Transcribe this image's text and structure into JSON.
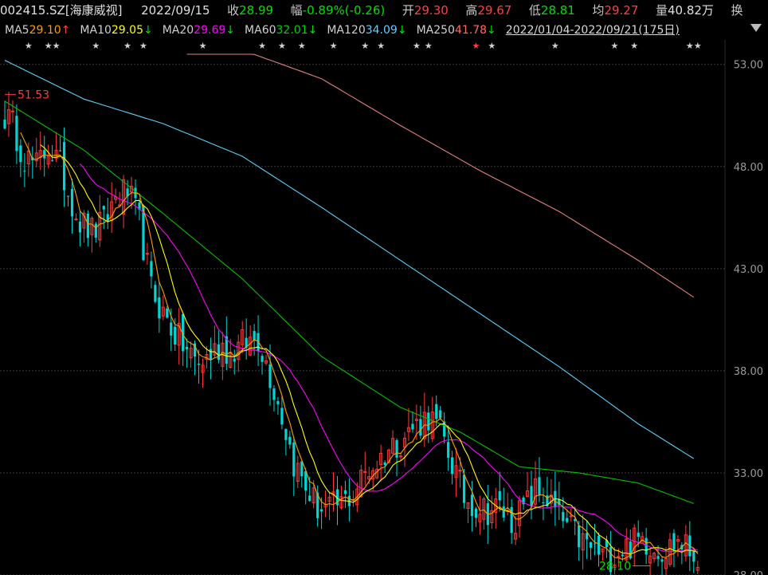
{
  "header": {
    "symbol": "002415.SZ[海康威视]",
    "date": "2022/09/15",
    "close_label": "收",
    "close": "28.99",
    "change_label": "幅",
    "change": "-0.89%(-0.26)",
    "open_label": "开",
    "open": "29.30",
    "high_label": "高",
    "high": "29.67",
    "low_label": "低",
    "low": "28.81",
    "avg_label": "均",
    "avg": "29.27",
    "vol_label": "量",
    "vol": "40.82万",
    "turnover_label": "换"
  },
  "ma_legend": [
    {
      "name": "MA5",
      "value": "29.10",
      "arrow": "↑",
      "color": "#ff9d00"
    },
    {
      "name": "MA10",
      "value": "29.05",
      "arrow": "↓",
      "color": "#ffff00"
    },
    {
      "name": "MA20",
      "value": "29.69",
      "arrow": "↓",
      "color": "#ff00ff"
    },
    {
      "name": "MA60",
      "value": "32.01",
      "arrow": "↓",
      "color": "#00d000"
    },
    {
      "name": "MA120",
      "value": "34.09",
      "arrow": "↓",
      "color": "#66ccff"
    },
    {
      "name": "MA250",
      "value": "41.78",
      "arrow": "↓",
      "color": "#ff6a6a"
    }
  ],
  "range_label": "2022/01/04-2022/09/21(175日)",
  "colors": {
    "up": "#ff3b3b",
    "down": "#00d6d6",
    "ma5": "#ff9d00",
    "ma10": "#ffff00",
    "ma20": "#ff00ff",
    "ma60": "#00c000",
    "ma120": "#5ccff7",
    "ma250": "#e08080",
    "grid": "#3a3a3a",
    "high_marker": "#ff3b3b",
    "low_marker": "#00e000"
  },
  "chart_data": {
    "type": "candlestick",
    "ylim": [
      28.0,
      54.2
    ],
    "yticks": [
      "53.00",
      "48.00",
      "43.00",
      "38.00",
      "33.00",
      "28.00"
    ],
    "high_annotation": "51.53",
    "low_annotation": "28.10",
    "anchors": [
      [
        0,
        50.5
      ],
      [
        2,
        50.0
      ],
      [
        5,
        48.5
      ],
      [
        8,
        48.0
      ],
      [
        11,
        49.0
      ],
      [
        14,
        48.0
      ],
      [
        16,
        46.8
      ],
      [
        19,
        45.3
      ],
      [
        22,
        44.8
      ],
      [
        25,
        45.2
      ],
      [
        28,
        46.5
      ],
      [
        31,
        46.8
      ],
      [
        34,
        45.2
      ],
      [
        37,
        42.0
      ],
      [
        40,
        40.8
      ],
      [
        43,
        39.8
      ],
      [
        46,
        39.0
      ],
      [
        49,
        38.3
      ],
      [
        52,
        38.8
      ],
      [
        55,
        39.3
      ],
      [
        57,
        38.8
      ],
      [
        60,
        39.3
      ],
      [
        64,
        39.6
      ],
      [
        67,
        37.8
      ],
      [
        70,
        35.8
      ],
      [
        73,
        33.5
      ],
      [
        76,
        32.3
      ],
      [
        79,
        31.3
      ],
      [
        82,
        31.2
      ],
      [
        85,
        31.5
      ],
      [
        88,
        32.0
      ],
      [
        91,
        33.0
      ],
      [
        94,
        33.5
      ],
      [
        97,
        34.2
      ],
      [
        100,
        34.6
      ],
      [
        103,
        35.2
      ],
      [
        107,
        35.8
      ],
      [
        110,
        35.0
      ],
      [
        113,
        33.5
      ],
      [
        116,
        31.8
      ],
      [
        119,
        31.4
      ],
      [
        122,
        31.2
      ],
      [
        125,
        31.3
      ],
      [
        128,
        30.6
      ],
      [
        131,
        31.2
      ],
      [
        134,
        32.1
      ],
      [
        137,
        31.7
      ],
      [
        140,
        30.8
      ],
      [
        143,
        30.2
      ],
      [
        146,
        29.6
      ],
      [
        149,
        29.2
      ],
      [
        152,
        28.8
      ],
      [
        155,
        29.2
      ],
      [
        158,
        29.5
      ],
      [
        161,
        29.8
      ],
      [
        164,
        29.4
      ],
      [
        167,
        29.2
      ],
      [
        170,
        29.7
      ],
      [
        174,
        29.0
      ]
    ],
    "ma60_anchors": [
      [
        0,
        51.2
      ],
      [
        20,
        48.8
      ],
      [
        40,
        45.7
      ],
      [
        60,
        42.5
      ],
      [
        80,
        38.7
      ],
      [
        100,
        36.2
      ],
      [
        115,
        35.0
      ],
      [
        130,
        33.3
      ],
      [
        145,
        33.0
      ],
      [
        160,
        32.5
      ],
      [
        174,
        31.5
      ]
    ],
    "ma120_anchors": [
      [
        0,
        53.2
      ],
      [
        20,
        51.3
      ],
      [
        40,
        50.1
      ],
      [
        60,
        48.5
      ],
      [
        80,
        46.0
      ],
      [
        100,
        43.4
      ],
      [
        120,
        40.8
      ],
      [
        140,
        38.2
      ],
      [
        160,
        35.4
      ],
      [
        174,
        33.7
      ]
    ],
    "ma250_anchors": [
      [
        46,
        54.5
      ],
      [
        60,
        53.7
      ],
      [
        80,
        52.3
      ],
      [
        100,
        50.0
      ],
      [
        120,
        47.8
      ],
      [
        140,
        45.8
      ],
      [
        160,
        43.4
      ],
      [
        174,
        41.6
      ]
    ],
    "star_positions": [
      6,
      11,
      13,
      23,
      31,
      35,
      50,
      65,
      70,
      75,
      83,
      91,
      95,
      104,
      107,
      119,
      123,
      139,
      154,
      159,
      173,
      175
    ],
    "red_star_positions": [
      24,
      119
    ]
  }
}
